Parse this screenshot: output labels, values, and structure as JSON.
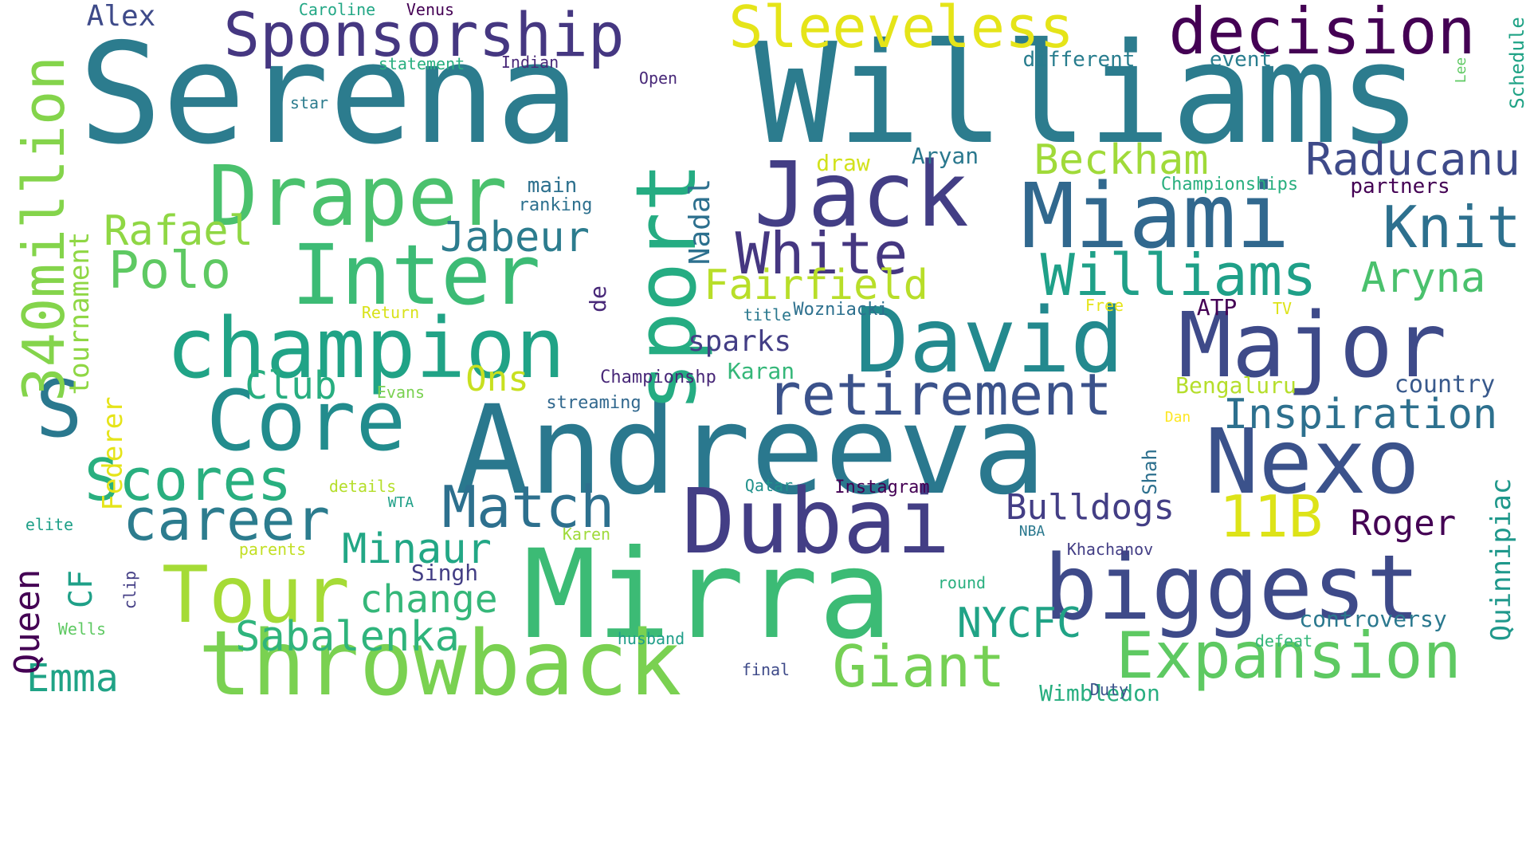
{
  "words": [
    {
      "text": "Serena",
      "color": "#2c7c8e"
    },
    {
      "text": "Williams",
      "color": "#2c7c8e"
    },
    {
      "text": "Andreeva",
      "color": "#2a788e"
    },
    {
      "text": "Mirra",
      "color": "#3cbb75"
    },
    {
      "text": "Jack",
      "color": "#433e85"
    },
    {
      "text": "Dubai",
      "color": "#433e85"
    },
    {
      "text": "throwback",
      "color": "#7ad151"
    },
    {
      "text": "Miami",
      "color": "#31688e"
    },
    {
      "text": "Major",
      "color": "#3e4a89"
    },
    {
      "text": "biggest",
      "color": "#3e4a89"
    },
    {
      "text": "Nexo",
      "color": "#3b528b"
    },
    {
      "text": "David",
      "color": "#23898e"
    },
    {
      "text": "Draper",
      "color": "#4ac16d"
    },
    {
      "text": "Core",
      "color": "#228c8d"
    },
    {
      "text": "Inter",
      "color": "#3cbb75"
    },
    {
      "text": "champion",
      "color": "#20a386"
    },
    {
      "text": "sport",
      "color": "#25ac82"
    },
    {
      "text": "Tour",
      "color": "#a5db36"
    },
    {
      "text": "S",
      "color": "#2a788e"
    },
    {
      "text": "decision",
      "color": "#440154"
    },
    {
      "text": "Sponsorship",
      "color": "#453781"
    },
    {
      "text": "Sleeveless",
      "color": "#e5e419"
    },
    {
      "text": "Expansion",
      "color": "#5ec962"
    },
    {
      "text": "Giant",
      "color": "#75d054"
    },
    {
      "text": "retirement",
      "color": "#3b528b"
    },
    {
      "text": "Match",
      "color": "#2d708e"
    },
    {
      "text": "career",
      "color": "#2c7c8e"
    },
    {
      "text": "Scores",
      "color": "#29af7f"
    },
    {
      "text": "Williams",
      "color": "#1fa088"
    },
    {
      "text": "Knit",
      "color": "#2d708e"
    },
    {
      "text": "White",
      "color": "#453781"
    },
    {
      "text": "340million",
      "color": "#84d44b"
    },
    {
      "text": "11B",
      "color": "#dde318"
    },
    {
      "text": "Polo",
      "color": "#5ec962"
    },
    {
      "text": "Bulldogs",
      "color": "#433e85"
    },
    {
      "text": "Roger",
      "color": "#440154"
    },
    {
      "text": "Raducanu",
      "color": "#3e4a89"
    },
    {
      "text": "Beckham",
      "color": "#a0da39"
    },
    {
      "text": "Inspiration",
      "color": "#2d708e"
    },
    {
      "text": "NYCFC",
      "color": "#20a386"
    },
    {
      "text": "Sabalenka",
      "color": "#2fb47c"
    },
    {
      "text": "Minaur",
      "color": "#22a785"
    },
    {
      "text": "Fairfield",
      "color": "#b8de29"
    },
    {
      "text": "Aryna",
      "color": "#4ac16d"
    },
    {
      "text": "Rafael",
      "color": "#8fd744"
    },
    {
      "text": "Jabeur",
      "color": "#2c7c8e"
    },
    {
      "text": "Quinnipiac",
      "color": "#1f988b"
    },
    {
      "text": "tournament",
      "color": "#8fd744"
    },
    {
      "text": "Federer",
      "color": "#e5e419"
    },
    {
      "text": "Club",
      "color": "#28ae80"
    },
    {
      "text": "change",
      "color": "#35b779"
    },
    {
      "text": "Emma",
      "color": "#20a386"
    },
    {
      "text": "Ons",
      "color": "#c8e020"
    },
    {
      "text": "Queen",
      "color": "#440154"
    },
    {
      "text": "CF",
      "color": "#1fa088"
    },
    {
      "text": "Nadal",
      "color": "#2d708e"
    },
    {
      "text": "sparks",
      "color": "#433e85"
    },
    {
      "text": "Alex",
      "color": "#3e4a89"
    },
    {
      "text": "controversy",
      "color": "#2a788e"
    },
    {
      "text": "Aryan",
      "color": "#2a788e"
    },
    {
      "text": "Karan",
      "color": "#35b779"
    },
    {
      "text": "Singh",
      "color": "#433e85"
    },
    {
      "text": "country",
      "color": "#38598c"
    },
    {
      "text": "Wimbledon",
      "color": "#28ae80"
    },
    {
      "text": "de",
      "color": "#482878"
    },
    {
      "text": "Shah",
      "color": "#2d708e"
    },
    {
      "text": "different",
      "color": "#287d8e"
    },
    {
      "text": "event",
      "color": "#287d8e"
    },
    {
      "text": "main",
      "color": "#2d708e"
    },
    {
      "text": "partners",
      "color": "#440154"
    },
    {
      "text": "Bengaluru",
      "color": "#b5de2b"
    },
    {
      "text": "draw",
      "color": "#d2e21b"
    },
    {
      "text": "ATP",
      "color": "#440154"
    },
    {
      "text": "Schedule",
      "color": "#20a386"
    },
    {
      "text": "Championships",
      "color": "#29af7f"
    },
    {
      "text": "Championshp",
      "color": "#482878"
    },
    {
      "text": "Wozniacki",
      "color": "#2d708e"
    },
    {
      "text": "streaming",
      "color": "#31688e"
    },
    {
      "text": "Instagram",
      "color": "#440154"
    },
    {
      "text": "ranking",
      "color": "#2d708e"
    },
    {
      "text": "Khachanov",
      "color": "#433e85"
    },
    {
      "text": "Indian",
      "color": "#482878"
    },
    {
      "text": "statement",
      "color": "#29af7f"
    },
    {
      "text": "husband",
      "color": "#1f9e89"
    },
    {
      "text": "Caroline",
      "color": "#22a785"
    },
    {
      "text": "Venus",
      "color": "#440154"
    },
    {
      "text": "final",
      "color": "#3e4a89"
    },
    {
      "text": "Duty",
      "color": "#3b528b"
    },
    {
      "text": "defeat",
      "color": "#35b779"
    },
    {
      "text": "Wells",
      "color": "#5ec962"
    },
    {
      "text": "title",
      "color": "#2a788e"
    },
    {
      "text": "round",
      "color": "#29af7f"
    },
    {
      "text": "Open",
      "color": "#482878"
    },
    {
      "text": "details",
      "color": "#b5de2b"
    },
    {
      "text": "parents",
      "color": "#c2df23"
    },
    {
      "text": "elite",
      "color": "#1fa088"
    },
    {
      "text": "star",
      "color": "#2c7c8e"
    },
    {
      "text": "clip",
      "color": "#433e85"
    },
    {
      "text": "TV",
      "color": "#dde318"
    },
    {
      "text": "Free",
      "color": "#e5e419"
    },
    {
      "text": "Return",
      "color": "#d8e219"
    },
    {
      "text": "Evans",
      "color": "#7ad151"
    },
    {
      "text": "Karen",
      "color": "#9fda3a"
    },
    {
      "text": "Qatar",
      "color": "#21918c"
    },
    {
      "text": "WTA",
      "color": "#1fa088"
    },
    {
      "text": "NBA",
      "color": "#2a788e"
    },
    {
      "text": "Dan",
      "color": "#fde725"
    },
    {
      "text": "Lee",
      "color": "#5ec962"
    }
  ]
}
